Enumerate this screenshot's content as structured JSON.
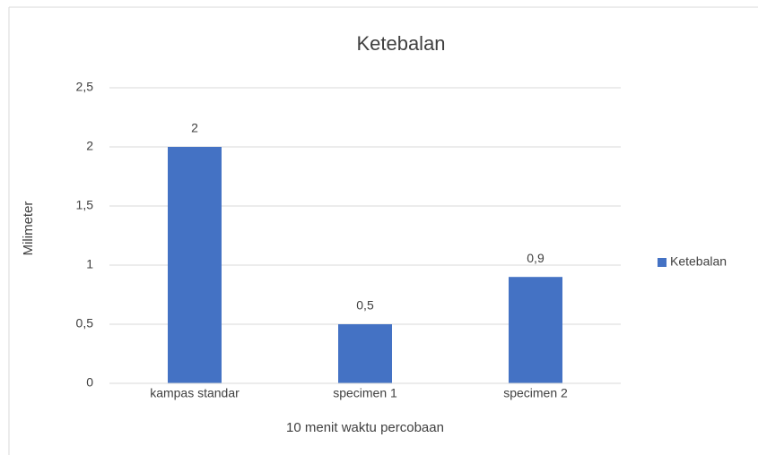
{
  "chart_data": {
    "type": "bar",
    "title": "Ketebalan",
    "x_label": "10 menit waktu percobaan",
    "y_label": "Milimeter",
    "categories": [
      "kampas standar",
      "specimen 1",
      "specimen 2"
    ],
    "series": [
      {
        "name": "Ketebalan",
        "color": "#4472c4",
        "values": [
          2,
          0.5,
          0.9
        ],
        "value_labels": [
          "2",
          "0,5",
          "0,9"
        ]
      }
    ],
    "ylim": [
      0,
      2.5
    ],
    "yticks": [
      0,
      {
        "value": 0.5,
        "label": "0,5"
      },
      1,
      {
        "value": 1.5,
        "label": "1,5"
      },
      2,
      {
        "value": 2.5,
        "label": "2,5"
      }
    ],
    "grid": true,
    "legend": "right"
  }
}
